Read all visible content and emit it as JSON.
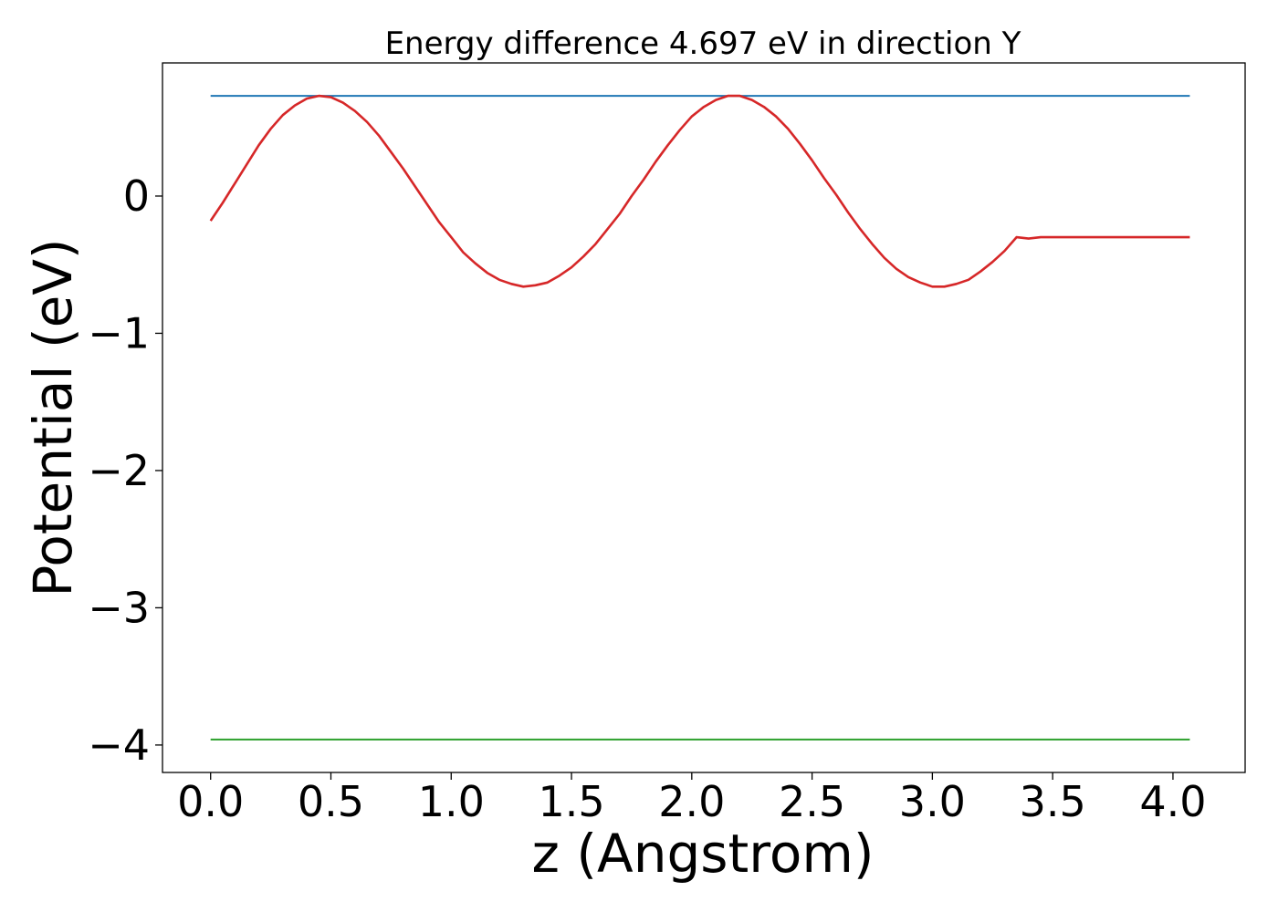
{
  "chart_data": {
    "type": "line",
    "title": "Energy difference 4.697 eV in direction Y",
    "xlabel": "z (Angstrom)",
    "ylabel": "Potential (eV)",
    "xlim": [
      -0.2,
      4.3
    ],
    "ylim": [
      -4.2,
      0.97
    ],
    "grid": false,
    "x_ticks": [
      0.0,
      0.5,
      1.0,
      1.5,
      2.0,
      2.5,
      3.0,
      3.5,
      4.0
    ],
    "x_tick_labels": [
      "0.0",
      "0.5",
      "1.0",
      "1.5",
      "2.0",
      "2.5",
      "3.0",
      "3.5",
      "4.0"
    ],
    "y_ticks": [
      0,
      -1,
      -2,
      -3,
      -4
    ],
    "y_tick_labels": [
      "0",
      "−1",
      "−2",
      "−3",
      "−4"
    ],
    "series": [
      {
        "color": "#1f77b4",
        "x": [
          0.0,
          4.07
        ],
        "y": [
          0.73,
          0.73
        ]
      },
      {
        "color": "#2ca02c",
        "x": [
          0.0,
          4.07
        ],
        "y": [
          -3.96,
          -3.96
        ]
      },
      {
        "color": "#d62728",
        "x": [
          0.0,
          0.05,
          0.1,
          0.15,
          0.2,
          0.25,
          0.3,
          0.35,
          0.4,
          0.45,
          0.5,
          0.55,
          0.6,
          0.65,
          0.7,
          0.75,
          0.8,
          0.85,
          0.9,
          0.95,
          1.0,
          1.05,
          1.1,
          1.15,
          1.2,
          1.25,
          1.3,
          1.35,
          1.4,
          1.45,
          1.5,
          1.55,
          1.6,
          1.65,
          1.7,
          1.75,
          1.8,
          1.85,
          1.9,
          1.95,
          2.0,
          2.05,
          2.1,
          2.15,
          2.2,
          2.25,
          2.3,
          2.35,
          2.4,
          2.45,
          2.5,
          2.55,
          2.6,
          2.65,
          2.7,
          2.75,
          2.8,
          2.85,
          2.9,
          2.95,
          3.0,
          3.05,
          3.1,
          3.15,
          3.2,
          3.25,
          3.3,
          3.35,
          3.4,
          3.45,
          3.5,
          3.55,
          3.6,
          3.65,
          3.7,
          3.75,
          3.8,
          3.85,
          3.9,
          3.95,
          4.0,
          4.05,
          4.07
        ],
        "y": [
          -0.18,
          -0.05,
          0.09,
          0.23,
          0.37,
          0.49,
          0.59,
          0.66,
          0.71,
          0.73,
          0.72,
          0.68,
          0.62,
          0.54,
          0.44,
          0.32,
          0.2,
          0.07,
          -0.06,
          -0.19,
          -0.3,
          -0.41,
          -0.49,
          -0.56,
          -0.61,
          -0.64,
          -0.66,
          -0.65,
          -0.63,
          -0.58,
          -0.52,
          -0.44,
          -0.35,
          -0.24,
          -0.13,
          0.0,
          0.12,
          0.25,
          0.37,
          0.48,
          0.58,
          0.65,
          0.7,
          0.73,
          0.73,
          0.7,
          0.65,
          0.58,
          0.49,
          0.38,
          0.26,
          0.13,
          0.01,
          -0.12,
          -0.24,
          -0.35,
          -0.45,
          -0.53,
          -0.59,
          -0.63,
          -0.66,
          -0.66,
          -0.64,
          -0.61,
          -0.55,
          -0.48,
          -0.4,
          -0.3,
          -0.31,
          -0.3,
          -0.3,
          -0.3,
          -0.3,
          -0.3,
          -0.3,
          -0.3,
          -0.3,
          -0.3,
          -0.3,
          -0.3,
          -0.3,
          -0.3,
          -0.3
        ]
      }
    ]
  }
}
